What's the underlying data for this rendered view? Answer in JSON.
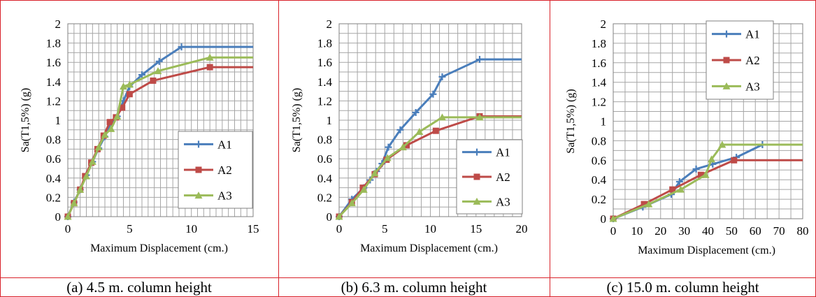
{
  "colors": {
    "A1": "#4a7ebb",
    "A2": "#be4b48",
    "A3": "#9bbb59",
    "grid": "#a6a6a6",
    "border": "#d9222a"
  },
  "panels": [
    {
      "caption": "(a) 4.5 m. column height"
    },
    {
      "caption": "(b) 6.3 m. column height"
    },
    {
      "caption": "(c) 15.0 m. column height"
    }
  ],
  "chart_data": [
    {
      "type": "line",
      "xlabel": "Maximum Displacement (cm.)",
      "ylabel": "Sa(T1,5%) (g)",
      "xlim": [
        0,
        15
      ],
      "ylim": [
        0,
        2
      ],
      "xticks": [
        0,
        5,
        10,
        15
      ],
      "yticks": [
        0,
        0.2,
        0.4,
        0.6,
        0.8,
        1,
        1.2,
        1.4,
        1.6,
        1.8,
        2
      ],
      "grid": true,
      "legend": "bottom-right",
      "series": [
        {
          "name": "A1",
          "marker": "plus",
          "x": [
            0,
            0.5,
            1.0,
            1.5,
            2.0,
            2.5,
            3.0,
            3.5,
            4.0,
            4.5,
            5.0,
            6.0,
            7.4,
            9.2,
            15
          ],
          "y": [
            0,
            0.15,
            0.28,
            0.43,
            0.57,
            0.71,
            0.83,
            0.97,
            1.04,
            1.2,
            1.35,
            1.47,
            1.61,
            1.76,
            1.76
          ]
        },
        {
          "name": "A2",
          "marker": "square",
          "x": [
            0,
            0.5,
            1.0,
            1.4,
            1.9,
            2.4,
            2.9,
            3.4,
            3.9,
            4.4,
            5.0,
            6.9,
            11.5,
            15
          ],
          "y": [
            0,
            0.14,
            0.28,
            0.42,
            0.56,
            0.7,
            0.84,
            0.98,
            1.03,
            1.13,
            1.27,
            1.41,
            1.55,
            1.55
          ]
        },
        {
          "name": "A3",
          "marker": "triangle",
          "x": [
            0,
            0.5,
            1.0,
            1.5,
            2.0,
            2.5,
            3.0,
            3.5,
            4.0,
            4.5,
            5.0,
            7.3,
            11.5,
            15
          ],
          "y": [
            0,
            0.14,
            0.28,
            0.42,
            0.57,
            0.72,
            0.85,
            0.91,
            1.04,
            1.35,
            1.37,
            1.51,
            1.65,
            1.65
          ]
        }
      ]
    },
    {
      "type": "line",
      "xlabel": "Maximum Displacement (cm.)",
      "ylabel": "Sa(T1,5%) (g)",
      "xlim": [
        0,
        20
      ],
      "ylim": [
        0,
        2
      ],
      "xticks": [
        0,
        5,
        10,
        15,
        20
      ],
      "yticks": [
        0,
        0.2,
        0.4,
        0.6,
        0.8,
        1,
        1.2,
        1.4,
        1.6,
        1.8,
        2
      ],
      "grid": true,
      "legend": "bottom-right",
      "series": [
        {
          "name": "A1",
          "marker": "plus",
          "x": [
            0,
            1.4,
            2.7,
            3.4,
            4.1,
            4.7,
            5.4,
            6.7,
            8.4,
            10.3,
            11.3,
            15.4,
            20
          ],
          "y": [
            0,
            0.18,
            0.3,
            0.38,
            0.47,
            0.55,
            0.72,
            0.9,
            1.08,
            1.27,
            1.45,
            1.63,
            1.63
          ]
        },
        {
          "name": "A2",
          "marker": "square",
          "x": [
            0,
            1.4,
            2.6,
            3.9,
            5.2,
            7.4,
            10.6,
            15.4,
            20
          ],
          "y": [
            0,
            0.15,
            0.3,
            0.44,
            0.59,
            0.74,
            0.89,
            1.04,
            1.04
          ]
        },
        {
          "name": "A3",
          "marker": "triangle",
          "x": [
            0,
            1.4,
            2.7,
            3.9,
            5.3,
            7.0,
            8.8,
            11.3,
            15.4,
            20
          ],
          "y": [
            0,
            0.14,
            0.28,
            0.45,
            0.61,
            0.72,
            0.88,
            1.03,
            1.03,
            1.03
          ]
        }
      ]
    },
    {
      "type": "line",
      "xlabel": "Maximum Displacement (cm.)",
      "ylabel": "Sa(T1,5%) (g)",
      "xlim": [
        0,
        80
      ],
      "ylim": [
        0,
        2
      ],
      "xticks": [
        0,
        10,
        20,
        30,
        40,
        50,
        60,
        70,
        80
      ],
      "yticks": [
        0,
        0.2,
        0.4,
        0.6,
        0.8,
        1,
        1.2,
        1.4,
        1.6,
        1.8,
        2
      ],
      "grid": true,
      "legend": "top-left",
      "series": [
        {
          "name": "A1",
          "marker": "plus",
          "x": [
            0,
            12.5,
            24.5,
            28,
            35,
            42,
            52,
            63,
            80
          ],
          "y": [
            0,
            0.12,
            0.25,
            0.38,
            0.51,
            0.56,
            0.63,
            0.76,
            0.76
          ]
        },
        {
          "name": "A2",
          "marker": "square",
          "x": [
            0,
            13,
            25,
            37,
            51,
            80
          ],
          "y": [
            0,
            0.15,
            0.3,
            0.45,
            0.6,
            0.6
          ]
        },
        {
          "name": "A3",
          "marker": "triangle",
          "x": [
            0,
            15,
            28.5,
            39,
            41.5,
            46,
            80
          ],
          "y": [
            0,
            0.15,
            0.3,
            0.45,
            0.61,
            0.76,
            0.76
          ]
        }
      ]
    }
  ]
}
